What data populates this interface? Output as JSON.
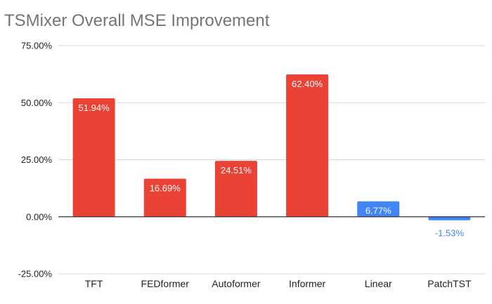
{
  "chart_data": {
    "type": "bar",
    "title": "TSMixer Overall MSE Improvement",
    "xlabel": "",
    "ylabel": "",
    "categories": [
      "TFT",
      "FEDformer",
      "Autoformer",
      "Informer",
      "Linear",
      "PatchTST"
    ],
    "values": [
      51.94,
      16.69,
      24.51,
      62.4,
      6.77,
      -1.53
    ],
    "data_labels": [
      "51.94%",
      "16.69%",
      "24.51%",
      "62.40%",
      "6.77%",
      "-1.53%"
    ],
    "bar_colors": [
      "#EA4335",
      "#EA4335",
      "#EA4335",
      "#EA4335",
      "#4285F4",
      "#4285F4"
    ],
    "ylim": [
      -25,
      75
    ],
    "yticks": [
      75,
      50,
      25,
      0,
      -25
    ],
    "ytick_labels": [
      "75.00%",
      "50.00%",
      "25.00%",
      "0.00%",
      "-25.00%"
    ],
    "grid": true,
    "legend": "none"
  },
  "colors": {
    "title": "#757575",
    "grid": "#d9d9d9",
    "zero_line": "#333333",
    "positive_label_inside": "#ffffff",
    "negative_label": "#4285F4"
  }
}
